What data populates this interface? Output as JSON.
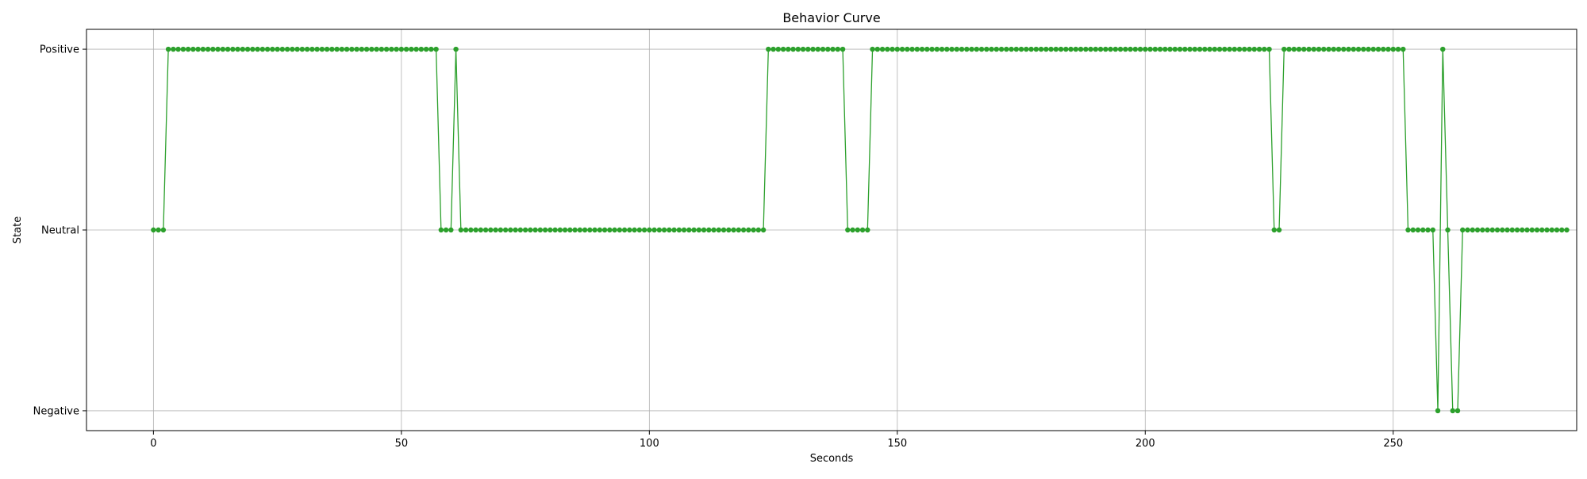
{
  "chart_data": {
    "type": "line",
    "title": "Behavior Curve",
    "xlabel": "Seconds",
    "ylabel": "State",
    "xlim": [
      -13.5,
      287
    ],
    "ylim": [
      -0.11,
      2.11
    ],
    "x_ticks": [
      0,
      50,
      100,
      150,
      200,
      250
    ],
    "y_ticks": [
      {
        "value": 0,
        "label": "Negative"
      },
      {
        "value": 1,
        "label": "Neutral"
      },
      {
        "value": 2,
        "label": "Positive"
      }
    ],
    "grid": true,
    "series": [
      {
        "color": "#2ca02c",
        "marker": "circle",
        "x_start": 0,
        "x_step": 1,
        "values": [
          1,
          1,
          1,
          2,
          2,
          2,
          2,
          2,
          2,
          2,
          2,
          2,
          2,
          2,
          2,
          2,
          2,
          2,
          2,
          2,
          2,
          2,
          2,
          2,
          2,
          2,
          2,
          2,
          2,
          2,
          2,
          2,
          2,
          2,
          2,
          2,
          2,
          2,
          2,
          2,
          2,
          2,
          2,
          2,
          2,
          2,
          2,
          2,
          2,
          2,
          2,
          2,
          2,
          2,
          2,
          2,
          2,
          2,
          1,
          1,
          1,
          2,
          1,
          1,
          1,
          1,
          1,
          1,
          1,
          1,
          1,
          1,
          1,
          1,
          1,
          1,
          1,
          1,
          1,
          1,
          1,
          1,
          1,
          1,
          1,
          1,
          1,
          1,
          1,
          1,
          1,
          1,
          1,
          1,
          1,
          1,
          1,
          1,
          1,
          1,
          1,
          1,
          1,
          1,
          1,
          1,
          1,
          1,
          1,
          1,
          1,
          1,
          1,
          1,
          1,
          1,
          1,
          1,
          1,
          1,
          1,
          1,
          1,
          1,
          2,
          2,
          2,
          2,
          2,
          2,
          2,
          2,
          2,
          2,
          2,
          2,
          2,
          2,
          2,
          2,
          1,
          1,
          1,
          1,
          1,
          2,
          2,
          2,
          2,
          2,
          2,
          2,
          2,
          2,
          2,
          2,
          2,
          2,
          2,
          2,
          2,
          2,
          2,
          2,
          2,
          2,
          2,
          2,
          2,
          2,
          2,
          2,
          2,
          2,
          2,
          2,
          2,
          2,
          2,
          2,
          2,
          2,
          2,
          2,
          2,
          2,
          2,
          2,
          2,
          2,
          2,
          2,
          2,
          2,
          2,
          2,
          2,
          2,
          2,
          2,
          2,
          2,
          2,
          2,
          2,
          2,
          2,
          2,
          2,
          2,
          2,
          2,
          2,
          2,
          2,
          2,
          2,
          2,
          2,
          2,
          2,
          2,
          2,
          2,
          2,
          2,
          1,
          1,
          2,
          2,
          2,
          2,
          2,
          2,
          2,
          2,
          2,
          2,
          2,
          2,
          2,
          2,
          2,
          2,
          2,
          2,
          2,
          2,
          2,
          2,
          2,
          2,
          2,
          1,
          1,
          1,
          1,
          1,
          1,
          0,
          2,
          1,
          0,
          0,
          1,
          1,
          1,
          1,
          1,
          1,
          1,
          1,
          1,
          1,
          1,
          1,
          1,
          1,
          1,
          1,
          1,
          1,
          1,
          1,
          1,
          1
        ]
      }
    ]
  }
}
